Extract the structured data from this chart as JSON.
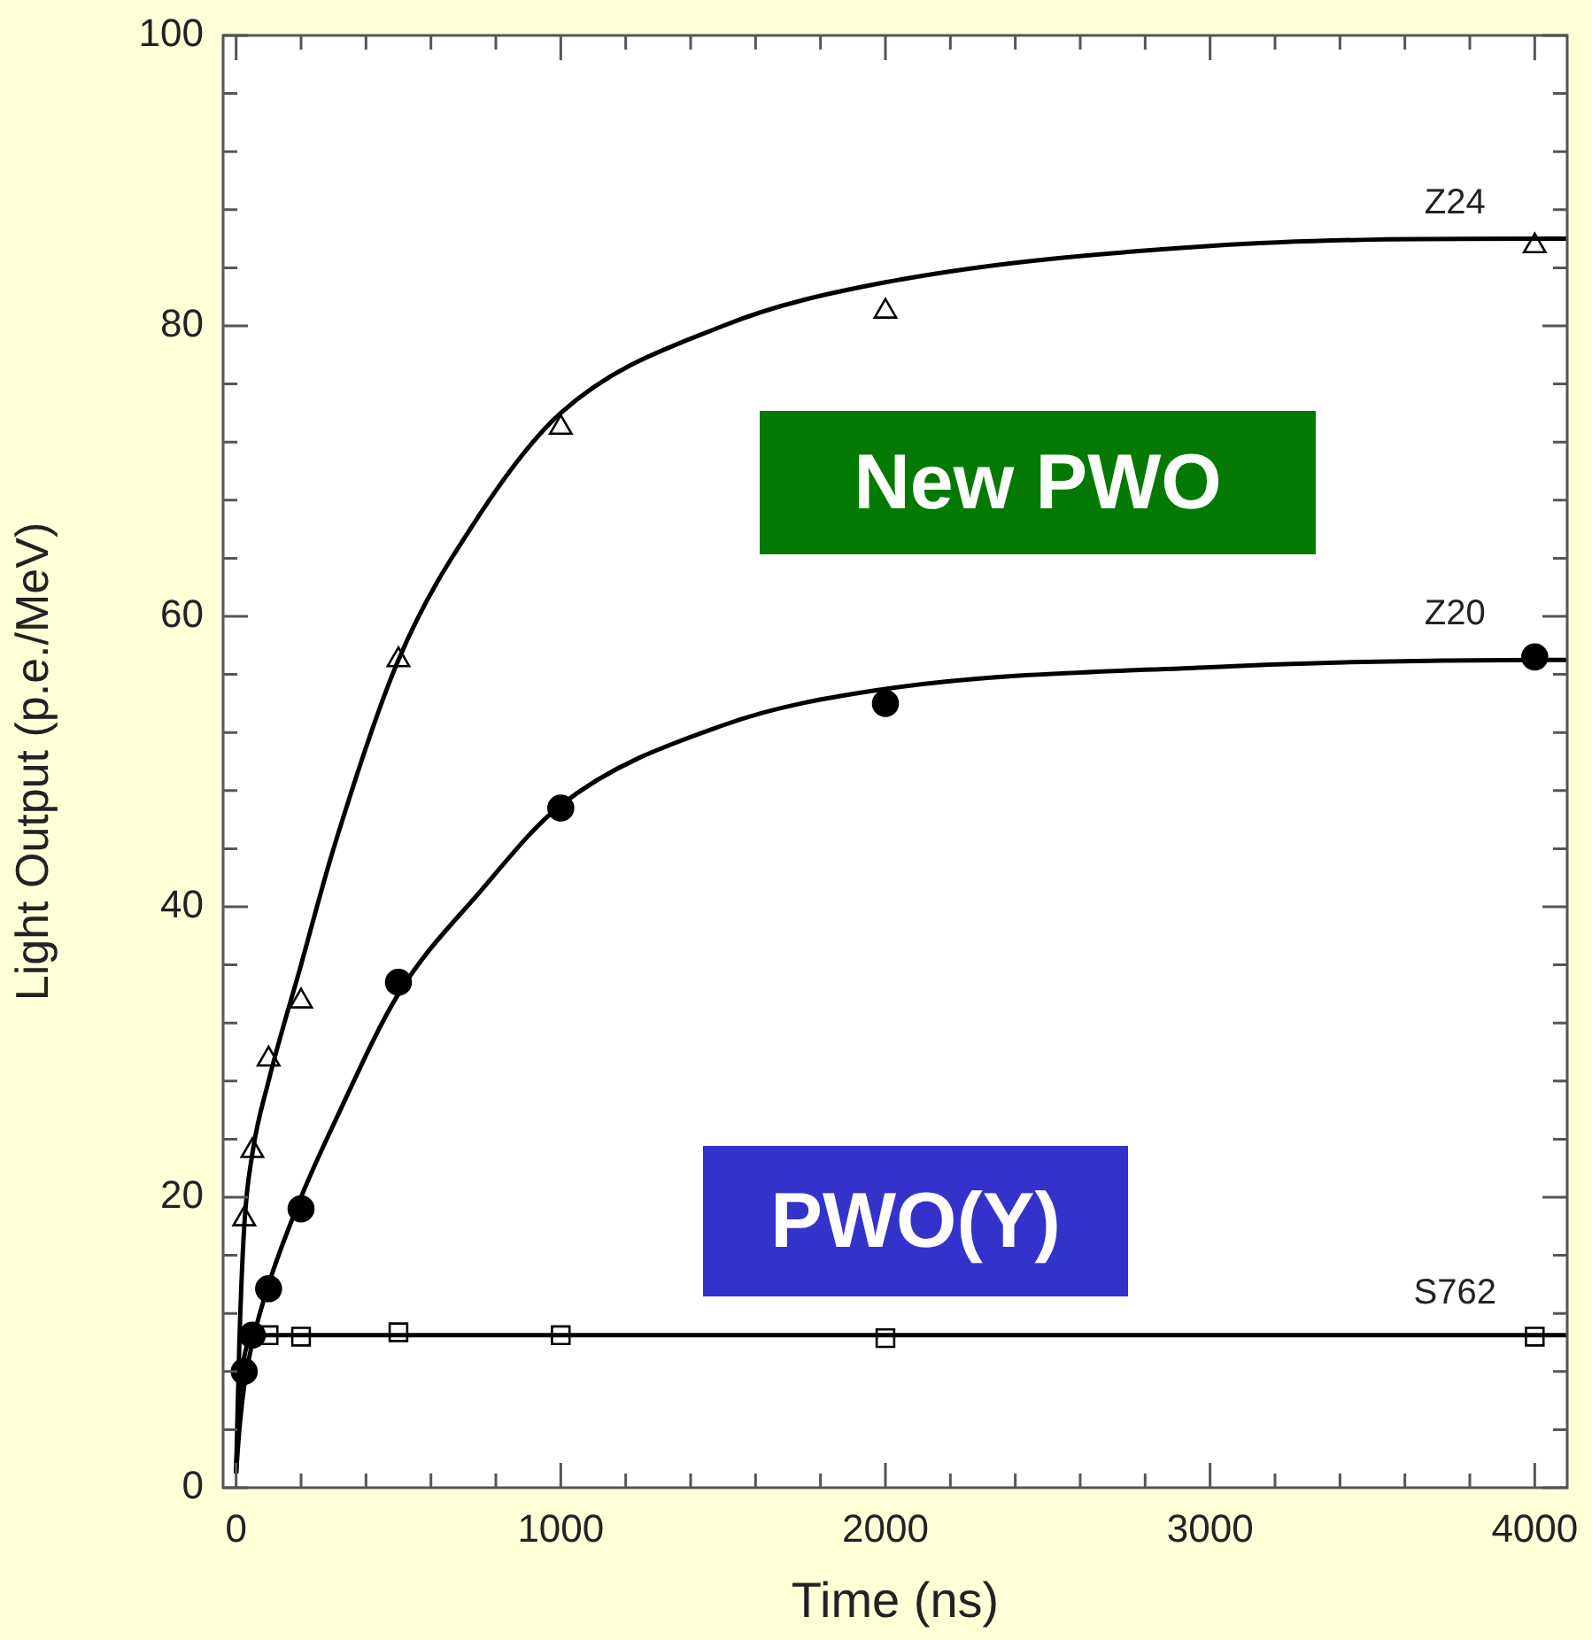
{
  "chart_data": {
    "type": "scatter",
    "xlabel": "Time (ns)",
    "ylabel": "Light Output (p.e./MeV)",
    "xlim": [
      -40,
      4100
    ],
    "ylim": [
      0,
      100
    ],
    "xticks": [
      0,
      {
        "value": 200,
        "label": null
      },
      {
        "value": 400,
        "label": null
      },
      {
        "value": 600,
        "label": null
      },
      {
        "value": 800,
        "label": null
      },
      1000,
      {
        "value": 1200,
        "label": null
      },
      {
        "value": 1400,
        "label": null
      },
      {
        "value": 1600,
        "label": null
      },
      {
        "value": 1800,
        "label": null
      },
      2000,
      {
        "value": 2200,
        "label": null
      },
      {
        "value": 2400,
        "label": null
      },
      {
        "value": 2600,
        "label": null
      },
      {
        "value": 2800,
        "label": null
      },
      3000,
      {
        "value": 3200,
        "label": null
      },
      {
        "value": 3400,
        "label": null
      },
      {
        "value": 3600,
        "label": null
      },
      {
        "value": 3800,
        "label": null
      },
      4000
    ],
    "yticks": [
      0,
      {
        "value": 4,
        "label": null
      },
      {
        "value": 8,
        "label": null
      },
      {
        "value": 12,
        "label": null
      },
      {
        "value": 16,
        "label": null
      },
      20,
      {
        "value": 24,
        "label": null
      },
      {
        "value": 28,
        "label": null
      },
      {
        "value": 32,
        "label": null
      },
      {
        "value": 36,
        "label": null
      },
      40,
      {
        "value": 44,
        "label": null
      },
      {
        "value": 48,
        "label": null
      },
      {
        "value": 52,
        "label": null
      },
      {
        "value": 56,
        "label": null
      },
      60,
      {
        "value": 64,
        "label": null
      },
      {
        "value": 68,
        "label": null
      },
      {
        "value": 72,
        "label": null
      },
      {
        "value": 76,
        "label": null
      },
      80,
      {
        "value": 84,
        "label": null
      },
      {
        "value": 88,
        "label": null
      },
      {
        "value": 92,
        "label": null
      },
      {
        "value": 96,
        "label": null
      },
      100
    ],
    "grid": false,
    "legend": false,
    "series": [
      {
        "name": "Z24",
        "marker": "triangle",
        "color": "#000000",
        "x": [
          25,
          50,
          100,
          200,
          500,
          1000,
          2000,
          4000
        ],
        "values": [
          18.5,
          23.2,
          29.5,
          33.5,
          57,
          73,
          81,
          85.5
        ]
      },
      {
        "name": "Z20",
        "marker": "circle",
        "color": "#000000",
        "x": [
          25,
          50,
          100,
          200,
          500,
          1000,
          2000,
          4000
        ],
        "values": [
          8,
          10.5,
          13.7,
          19.2,
          34.8,
          46.8,
          54,
          57.2
        ]
      },
      {
        "name": "S762",
        "marker": "square",
        "color": "#000000",
        "x": [
          100,
          200,
          500,
          1000,
          2000,
          4000
        ],
        "values": [
          10.5,
          10.4,
          10.7,
          10.5,
          10.3,
          10.4
        ]
      },
      {
        "type": "line",
        "marker": "none",
        "color": "#000000",
        "x": [
          0,
          10,
          25,
          50,
          100,
          200,
          300,
          500,
          750,
          1000,
          1500,
          2000,
          3000,
          4000,
          4100
        ],
        "values": [
          1,
          10,
          18,
          23,
          28,
          36,
          44,
          57,
          67,
          74,
          80,
          83,
          85.5,
          86,
          86
        ]
      },
      {
        "type": "line",
        "marker": "none",
        "color": "#000000",
        "x": [
          0,
          10,
          25,
          50,
          100,
          200,
          300,
          500,
          750,
          1000,
          1500,
          2000,
          3000,
          4000,
          4100
        ],
        "values": [
          1,
          4,
          7,
          10,
          14,
          20,
          25,
          34,
          41,
          47,
          52.5,
          55,
          56.5,
          57,
          57
        ]
      },
      {
        "type": "line",
        "marker": "none",
        "color": "#000000",
        "x": [
          0,
          5,
          10,
          25,
          50,
          100,
          4100
        ],
        "values": [
          1,
          4,
          6,
          9,
          10.3,
          10.5,
          10.5
        ]
      }
    ],
    "annotations": [
      "New PWO",
      "PWO(Y)"
    ]
  }
}
